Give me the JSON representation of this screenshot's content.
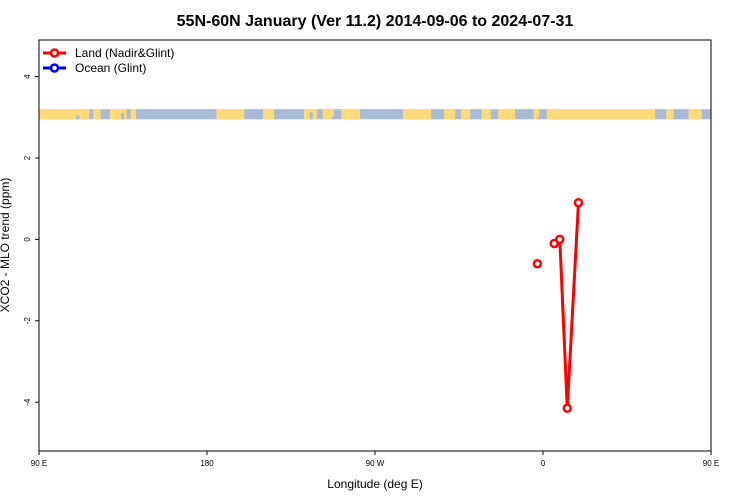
{
  "chart_data": {
    "type": "line",
    "title": "55N-60N January (Ver 11.2)   2014-09-06 to 2024-07-31",
    "xlabel": "Longitude (deg E)",
    "ylabel": "XCO2 - MLO trend (ppm)",
    "xlim": [
      90,
      450
    ],
    "ylim": [
      -5.2,
      4.9
    ],
    "x_ticks": [
      {
        "value": 90,
        "label": "90 E"
      },
      {
        "value": 180,
        "label": "180"
      },
      {
        "value": 270,
        "label": "90 W"
      },
      {
        "value": 360,
        "label": "0"
      },
      {
        "value": 450,
        "label": "90 E"
      },
      {
        "value": 540,
        "label": "180"
      }
    ],
    "y_ticks": [
      {
        "value": 4,
        "label": "4"
      },
      {
        "value": 2,
        "label": "2"
      },
      {
        "value": 0,
        "label": "0"
      },
      {
        "value": -2,
        "label": "-2"
      },
      {
        "value": -4,
        "label": "-4"
      }
    ],
    "legend": {
      "position": "top-left",
      "entries": [
        {
          "name": "Land (Nadir&Glint)",
          "color": "#ff0000"
        },
        {
          "name": "Ocean (Glint)",
          "color": "#0000ff"
        }
      ]
    },
    "series": [
      {
        "name": "Land (Nadir&Glint)",
        "color": "#ff0000",
        "points": [
          {
            "x": 357,
            "y": -0.6,
            "connected": false
          },
          {
            "x": 366,
            "y": -0.1,
            "connected": true
          },
          {
            "x": 369,
            "y": 0.0,
            "connected": true
          },
          {
            "x": 373,
            "y": -4.15,
            "connected": true
          },
          {
            "x": 379,
            "y": 0.9,
            "connected": true
          }
        ]
      },
      {
        "name": "Ocean (Glint)",
        "color": "#0000ff",
        "points": []
      }
    ],
    "map_strip": {
      "y_top": 3.2,
      "y_bottom": 2.95,
      "ocean_color": "#a7bbd8",
      "land_color": "#ffd97a"
    },
    "grid": false
  }
}
